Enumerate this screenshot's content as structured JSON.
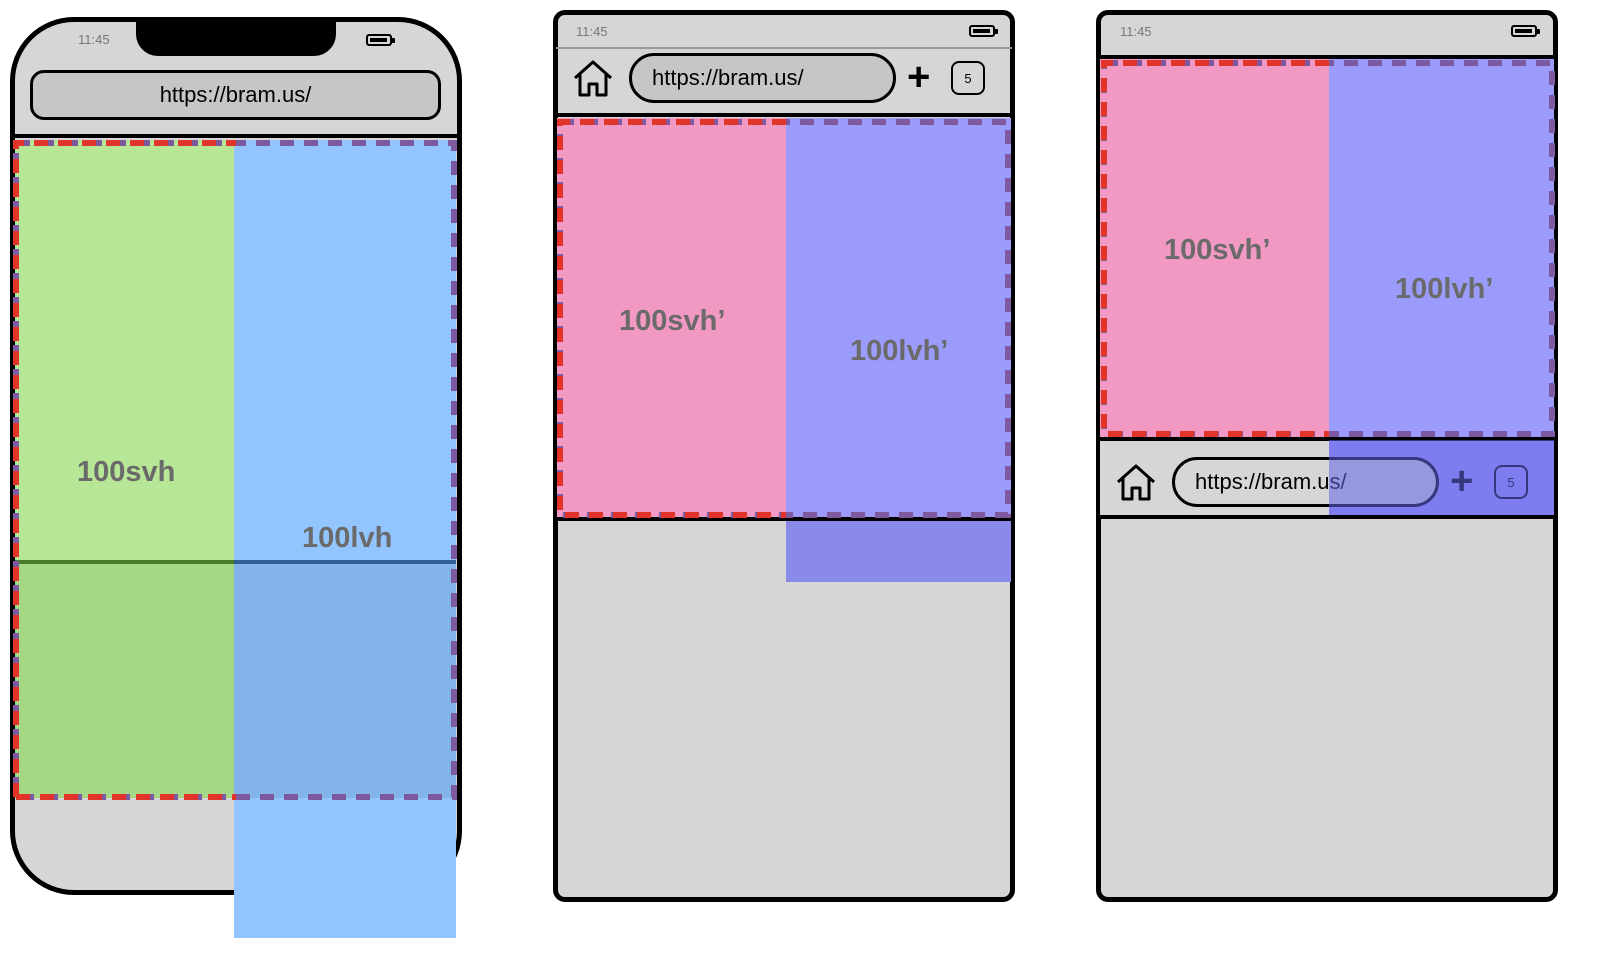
{
  "phone1": {
    "time": "11:45",
    "url": "https://bram.us/",
    "label_svh": "100svh",
    "label_lvh": "100lvh"
  },
  "phone2": {
    "time": "11:45",
    "url": "https://bram.us/",
    "tab_count": "5",
    "label_svh": "100svh’",
    "label_lvh": "100lvh’"
  },
  "phone3": {
    "time": "11:45",
    "url": "https://bram.us/",
    "tab_count": "5",
    "label_svh": "100svh’",
    "label_lvh": "100lvh’"
  },
  "colors": {
    "frame_gray": "#d6d6d6",
    "svh_green": "#b6e696",
    "lvh_blue": "#92c5fd",
    "svh_pink": "#f299c3",
    "lvh_violet": "#9b9bfc",
    "dashed_red": "#e2352a",
    "dashed_purple": "#7d5aa0"
  }
}
